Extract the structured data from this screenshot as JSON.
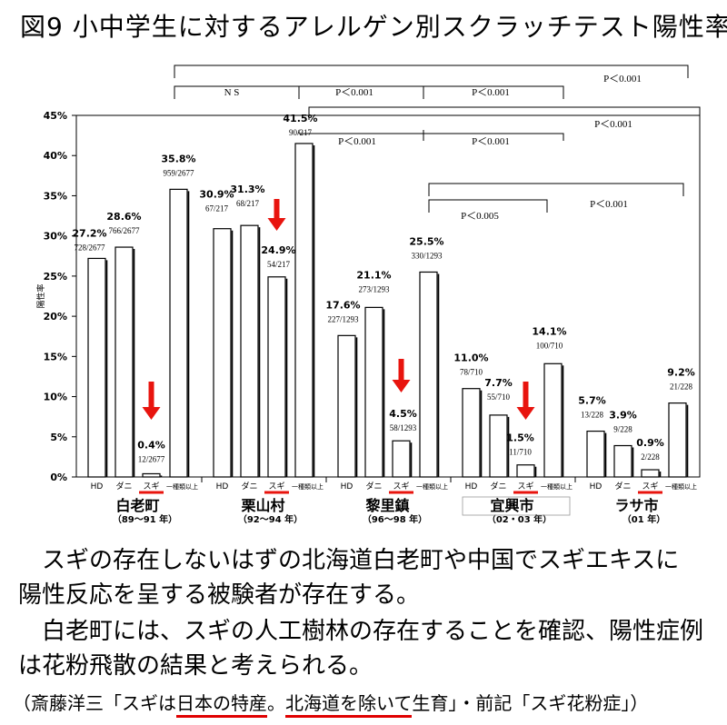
{
  "title": "図9  小中学生に対するアレルゲン別スクラッチテスト陽性率",
  "chart_data": {
    "type": "bar",
    "ylabel": "陽性率",
    "ylim": [
      0,
      45
    ],
    "yticks": [
      "0%",
      "5%",
      "10%",
      "15%",
      "20%",
      "25%",
      "30%",
      "35%",
      "40%",
      "45%"
    ],
    "category_labels": [
      "HD",
      "ダニ",
      "スギ",
      "一種類以上"
    ],
    "groups": [
      {
        "name": "白老町",
        "period": "（89～91 年）",
        "bars": [
          {
            "category": "HD",
            "value": 27.2,
            "label": "27.2%",
            "count": "728/2677"
          },
          {
            "category": "ダニ",
            "value": 28.6,
            "label": "28.6%",
            "count": "766/2677"
          },
          {
            "category": "スギ",
            "value": 0.4,
            "label": "0.4%",
            "count": "12/2677"
          },
          {
            "category": "一種類以上",
            "value": 35.8,
            "label": "35.8%",
            "count": "959/2677"
          }
        ]
      },
      {
        "name": "栗山村",
        "period": "（92～94 年）",
        "bars": [
          {
            "category": "HD",
            "value": 30.9,
            "label": "30.9%",
            "count": "67/217"
          },
          {
            "category": "ダニ",
            "value": 31.3,
            "label": "31.3%",
            "count": "68/217"
          },
          {
            "category": "スギ",
            "value": 24.9,
            "label": "24.9%",
            "count": "54/217"
          },
          {
            "category": "一種類以上",
            "value": 41.5,
            "label": "41.5%",
            "count": "90/217"
          }
        ]
      },
      {
        "name": "黎里鎮",
        "period": "（96～98 年）",
        "bars": [
          {
            "category": "HD",
            "value": 17.6,
            "label": "17.6%",
            "count": "227/1293"
          },
          {
            "category": "ダニ",
            "value": 21.1,
            "label": "21.1%",
            "count": "273/1293"
          },
          {
            "category": "スギ",
            "value": 4.5,
            "label": "4.5%",
            "count": "58/1293"
          },
          {
            "category": "一種類以上",
            "value": 25.5,
            "label": "25.5%",
            "count": "330/1293"
          }
        ]
      },
      {
        "name": "宜興市",
        "period": "（02・03 年）",
        "bars": [
          {
            "category": "HD",
            "value": 11.0,
            "label": "11.0%",
            "count": "78/710"
          },
          {
            "category": "ダニ",
            "value": 7.7,
            "label": "7.7%",
            "count": "55/710"
          },
          {
            "category": "スギ",
            "value": 1.5,
            "label": "1.5%",
            "count": "11/710"
          },
          {
            "category": "一種類以上",
            "value": 14.1,
            "label": "14.1%",
            "count": "100/710"
          }
        ]
      },
      {
        "name": "ラサ市",
        "period": "（01 年）",
        "bars": [
          {
            "category": "HD",
            "value": 5.7,
            "label": "5.7%",
            "count": "13/228"
          },
          {
            "category": "ダニ",
            "value": 3.9,
            "label": "3.9%",
            "count": "9/228"
          },
          {
            "category": "スギ",
            "value": 0.9,
            "label": "0.9%",
            "count": "2/228"
          },
          {
            "category": "一種類以上",
            "value": 9.2,
            "label": "9.2%",
            "count": "21/228"
          }
        ]
      }
    ],
    "comparisons": [
      {
        "from_group": 0,
        "to_group": 1,
        "label": "N S"
      },
      {
        "from_group": 1,
        "to_group": 2,
        "label": "P＜0.001"
      },
      {
        "from_group": 2,
        "to_group": 3,
        "label": "P＜0.001"
      },
      {
        "from_group": 0,
        "to_group": 3,
        "label": "P＜0.001"
      },
      {
        "from_group": 1,
        "to_group": 2,
        "label": "P＜0.001"
      },
      {
        "from_group": 2,
        "to_group": 3,
        "label": "P＜0.001"
      },
      {
        "from_group": 1,
        "to_group": 4,
        "label": "P＜0.001"
      },
      {
        "from_group": 2,
        "to_group": 3,
        "label": "P＜0.005"
      },
      {
        "from_group": 2,
        "to_group": 4,
        "label": "P＜0.001"
      }
    ],
    "highlight_category": "スギ",
    "colors": {
      "bar_fill": "#ffffff",
      "bar_stroke": "#000000",
      "arrow": "#e8140e",
      "underline": "#e8140e"
    }
  },
  "caption": {
    "line1": "　スギの存在しないはずの北海道白老町や中国でスギエキスに",
    "line2": "陽性反応を呈する被験者が存在する。",
    "line3": "　白老町には、スギの人工樹林の存在することを確認、陽性症例",
    "line4": "は花粉飛散の結果と考えられる。"
  },
  "source": {
    "part1": "（斎藤洋三「スギは",
    "part2": "日本の特産",
    "part3": "。",
    "part4": "北海道を除いて",
    "part5": "生育」・前記「スギ花粉症」）"
  }
}
